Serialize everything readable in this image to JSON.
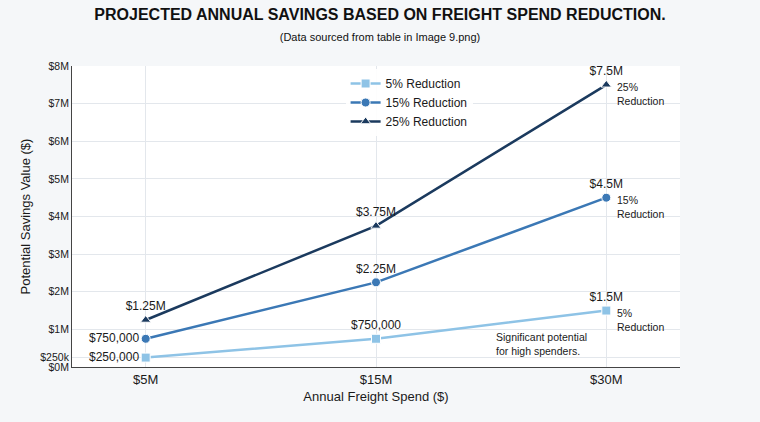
{
  "chart_data": {
    "type": "line",
    "title": "PROJECTED ANNUAL SAVINGS BASED ON FREIGHT SPEND REDUCTION.",
    "subtitle": "(Data sourced from table in Image 9.png)",
    "x_label": "Annual Freight Spend ($)",
    "y_label": "Potential Savings Value ($)",
    "categories": [
      "$5M",
      "$15M",
      "$30M"
    ],
    "series": [
      {
        "name": "5% Reduction",
        "color": "#8ec3e6",
        "marker": "square",
        "values": [
          250000,
          750000,
          1500000
        ],
        "value_labels": [
          "$250,000",
          "$750,000",
          "$1.5M"
        ]
      },
      {
        "name": "15% Reduction",
        "color": "#3b78b5",
        "marker": "circle",
        "values": [
          750000,
          2250000,
          4500000
        ],
        "value_labels": [
          "$750,000",
          "$2.25M",
          "$4.5M"
        ]
      },
      {
        "name": "25% Reduction",
        "color": "#1b3a5e",
        "marker": "triangle",
        "values": [
          1250000,
          3750000,
          7500000
        ],
        "value_labels": [
          "$1.25M",
          "$3.75M",
          "$7.5M"
        ]
      }
    ],
    "ylim": [
      0,
      8000000
    ],
    "yticks": [
      {
        "value": 0,
        "label": "$0M"
      },
      {
        "value": 250000,
        "label": "$250k"
      },
      {
        "value": 1000000,
        "label": "$1M"
      },
      {
        "value": 2000000,
        "label": "$2M"
      },
      {
        "value": 3000000,
        "label": "$3M"
      },
      {
        "value": 4000000,
        "label": "$4M"
      },
      {
        "value": 5000000,
        "label": "$5M"
      },
      {
        "value": 6000000,
        "label": "$6M"
      },
      {
        "value": 7000000,
        "label": "$7M"
      },
      {
        "value": 8000000,
        "label": "$8M"
      }
    ],
    "grid": true,
    "legend": "top",
    "data_labels": true,
    "annotations": [
      {
        "text": "25% Reduction",
        "x": 2,
        "y": 7500000
      },
      {
        "text": "15% Reduction",
        "x": 2,
        "y": 4500000
      },
      {
        "text": "5% Reduction",
        "x": 2,
        "y": 1500000
      },
      {
        "text": "Significant potential for high spenders.",
        "x": 1.72,
        "y": 600000
      }
    ]
  }
}
